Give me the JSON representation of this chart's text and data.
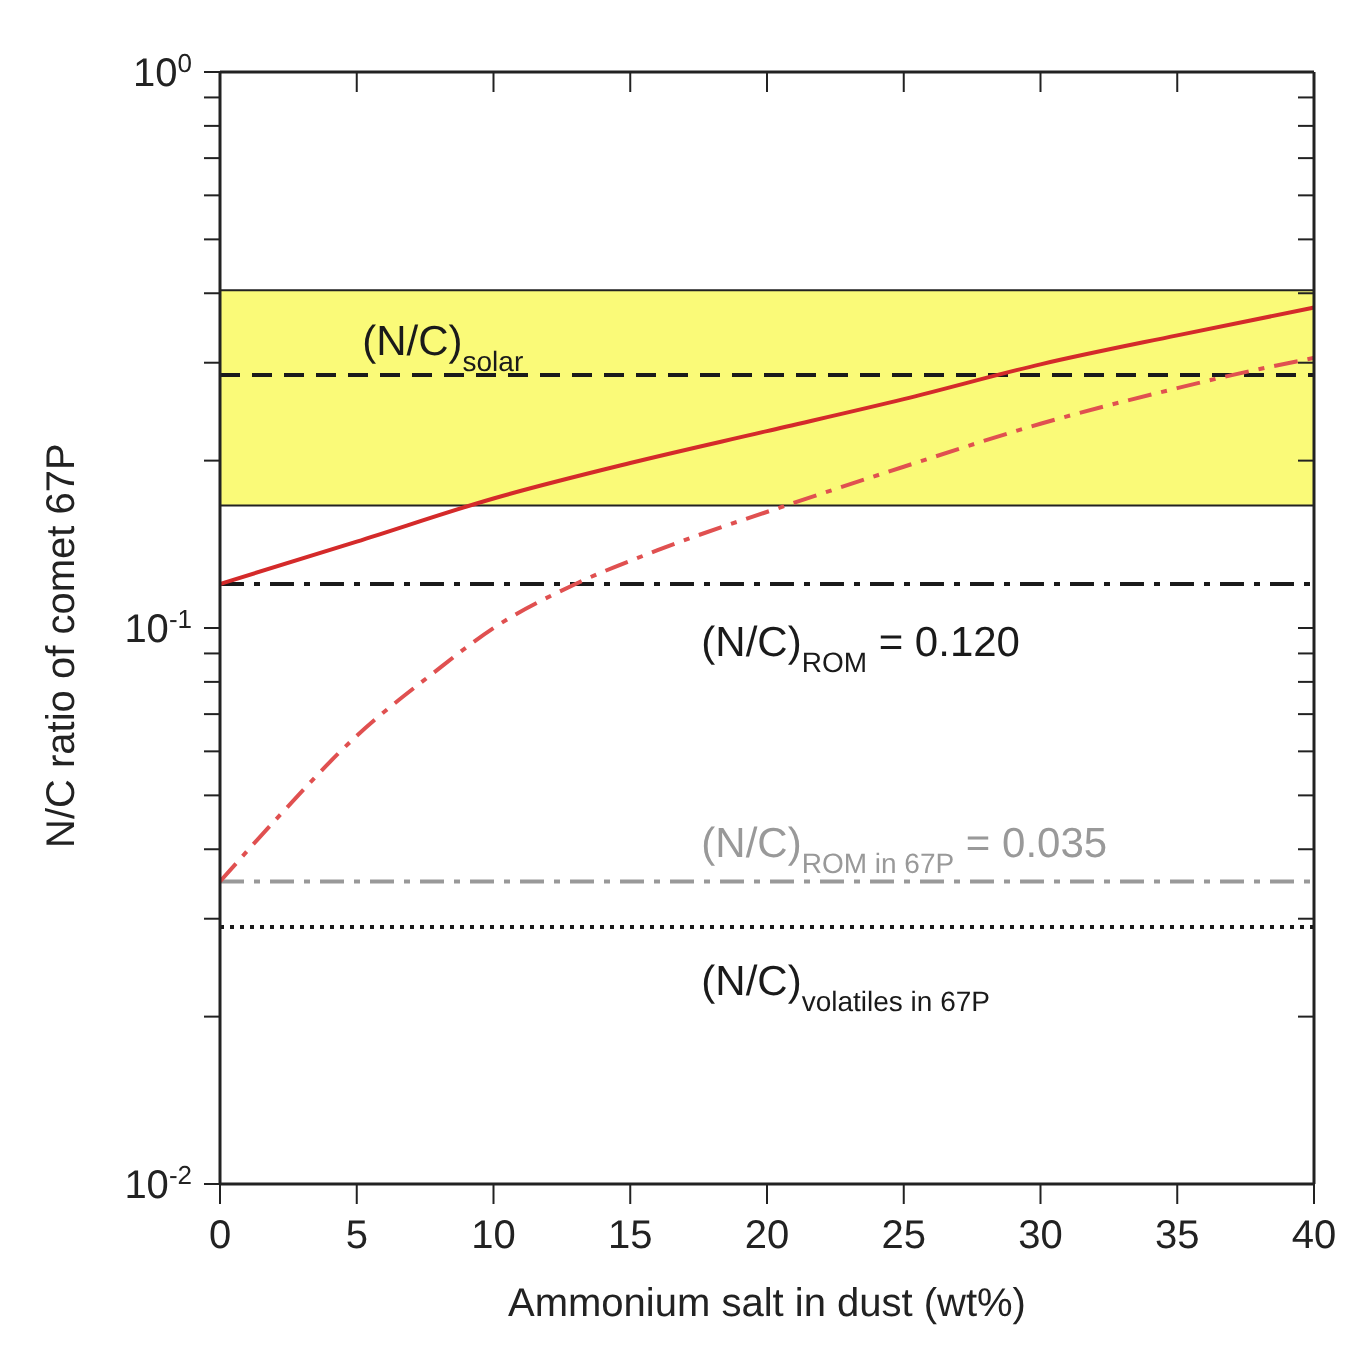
{
  "chart_data": {
    "type": "line",
    "xlabel": "Ammonium salt in dust (wt%)",
    "ylabel": "N/C ratio of comet 67P",
    "log": "y",
    "xlim": [
      0,
      40
    ],
    "xticks": [
      0,
      5,
      10,
      15,
      20,
      25,
      30,
      35,
      40
    ],
    "ylim": [
      0.01,
      1
    ],
    "yticks": [
      {
        "value": 0.01,
        "label": "10$^{-2}$"
      },
      {
        "value": 0.02,
        "label": null
      },
      {
        "value": 0.03,
        "label": null
      },
      {
        "value": 0.04,
        "label": null
      },
      {
        "value": 0.05,
        "label": null
      },
      {
        "value": 0.06,
        "label": null
      },
      {
        "value": 0.07,
        "label": null
      },
      {
        "value": 0.08,
        "label": null
      },
      {
        "value": 0.09,
        "label": null
      },
      {
        "value": 0.1,
        "label": "10$^{-1}$"
      },
      {
        "value": 0.2,
        "label": null
      },
      {
        "value": 0.3,
        "label": null
      },
      {
        "value": 0.4,
        "label": null
      },
      {
        "value": 0.5,
        "label": null
      },
      {
        "value": 0.6,
        "label": null
      },
      {
        "value": 0.7,
        "label": null
      },
      {
        "value": 0.8,
        "label": null
      },
      {
        "value": 0.9,
        "label": null
      },
      {
        "value": 1,
        "label": "10$^{0}$"
      }
    ],
    "grid": false,
    "legend": false,
    "marker": "none",
    "series": [
      {
        "color": "#d42a2a",
        "line_style": "solid",
        "x": [
          0,
          5,
          10,
          15,
          20,
          25,
          30,
          35,
          40
        ],
        "values": [
          0.12,
          0.143,
          0.171,
          0.198,
          0.226,
          0.258,
          0.298,
          0.336,
          0.377
        ]
      },
      {
        "color": "#e05050",
        "line_style": "dashdot",
        "x": [
          0,
          2,
          5,
          7.8,
          10,
          13,
          16,
          21,
          25,
          30,
          35,
          37,
          40
        ],
        "values": [
          0.035,
          0.045,
          0.064,
          0.083,
          0.1,
          0.12,
          0.138,
          0.168,
          0.195,
          0.233,
          0.27,
          0.285,
          0.306
        ]
      }
    ],
    "bands": [
      {
        "axis": "y",
        "from": 0.166,
        "to": 0.405,
        "color": "#fafa78"
      }
    ],
    "ref_lines": [
      {
        "axis": "y",
        "value": 0.285,
        "label": "(N/C)$_{solar}$",
        "color": "#1a1a1a",
        "line_style": "dashed"
      },
      {
        "axis": "y",
        "value": 0.12,
        "label": "(N/C)$_{ROM}$ = 0.120",
        "color": "#1a1a1a",
        "line_style": "dashdot"
      },
      {
        "axis": "y",
        "value": 0.035,
        "label": "(N/C)$_{ROM in 67P}$ = 0.035",
        "color": "#999999",
        "line_style": "dashdot"
      },
      {
        "axis": "y",
        "value": 0.029,
        "label": "(N/C)$_{volatiles in 67P}$",
        "color": "#1a1a1a",
        "line_style": "dotted"
      }
    ]
  }
}
